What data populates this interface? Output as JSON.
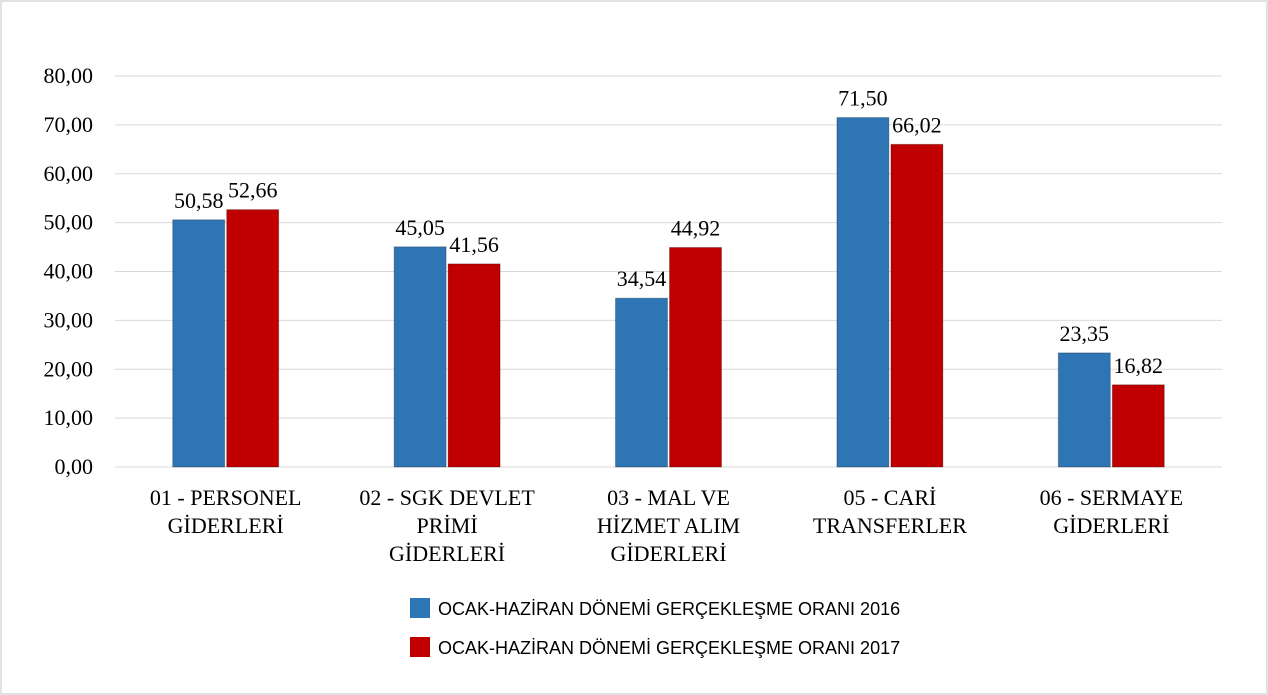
{
  "chart_data": {
    "type": "bar",
    "categories": [
      "01 - PERSONEL GİDERLERİ",
      "02 - SGK DEVLET PRİMİ GİDERLERİ",
      "03 - MAL VE HİZMET ALIM GİDERLERİ",
      "05 - CARİ TRANSFERLER",
      "06 - SERMAYE GİDERLERİ"
    ],
    "series": [
      {
        "name": "OCAK-HAZİRAN DÖNEMİ GERÇEKLEŞME ORANI 2016",
        "color": "#2e75b6",
        "values": [
          50.58,
          45.05,
          34.54,
          71.5,
          23.35
        ],
        "value_labels": [
          "50,58",
          "45,05",
          "34,54",
          "71,50",
          "23,35"
        ]
      },
      {
        "name": "OCAK-HAZİRAN DÖNEMİ GERÇEKLEŞME ORANI 2017",
        "color": "#c00000",
        "values": [
          52.66,
          41.56,
          44.92,
          66.02,
          16.82
        ],
        "value_labels": [
          "52,66",
          "41,56",
          "44,92",
          "66,02",
          "16,82"
        ]
      }
    ],
    "ylim": [
      0,
      80
    ],
    "yticks": [
      {
        "value": 0,
        "label": "0,00"
      },
      {
        "value": 10,
        "label": "10,00"
      },
      {
        "value": 20,
        "label": "20,00"
      },
      {
        "value": 30,
        "label": "30,00"
      },
      {
        "value": 40,
        "label": "40,00"
      },
      {
        "value": 50,
        "label": "50,00"
      },
      {
        "value": 60,
        "label": "60,00"
      },
      {
        "value": 70,
        "label": "70,00"
      },
      {
        "value": 80,
        "label": "80,00"
      }
    ],
    "grid": true,
    "legend": "bottom"
  }
}
